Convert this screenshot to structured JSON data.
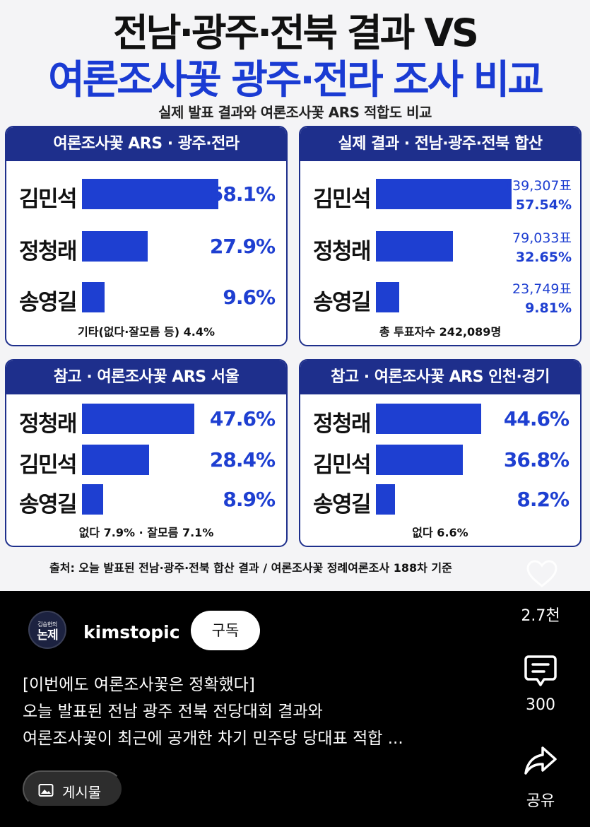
{
  "infographic": {
    "title_line1": "전남·광주·전북 결과 VS",
    "title_line2": "여론조사꽃 광주·전라 조사 비교",
    "subtitle": "실제 발표 결과와 여론조사꽃 ARS 적합도 비교",
    "source": "출처: 오늘 발표된 전남·광주·전북 합산 결과 / 여론조사꽃 정례여론조사 188차 기준",
    "bar_color": "#1e3fd1",
    "header_color": "#1e2f8c",
    "title_accent_color": "#1a3bd3"
  },
  "panels": [
    {
      "title": "여론조사꽃 ARS · 광주·전라",
      "footer": "기타(없다·잘모름 등) 4.4%",
      "rows": [
        {
          "name": "김민석",
          "value": 58.1,
          "label": "58.1%"
        },
        {
          "name": "정청래",
          "value": 27.9,
          "label": "27.9%"
        },
        {
          "name": "송영길",
          "value": 9.6,
          "label": "9.6%"
        }
      ]
    },
    {
      "title": "실제 결과 · 전남·광주·전북 합산",
      "footer": "총 투표자수 242,089명",
      "rows": [
        {
          "name": "김민석",
          "value": 57.54,
          "votes": "139,307표",
          "label": "57.54%"
        },
        {
          "name": "정청래",
          "value": 32.65,
          "votes": "79,033표",
          "label": "32.65%"
        },
        {
          "name": "송영길",
          "value": 9.81,
          "votes": "23,749표",
          "label": "9.81%"
        }
      ]
    },
    {
      "title": "참고 · 여론조사꽃 ARS 서울",
      "footer": "없다 7.9% · 잘모름 7.1%",
      "rows": [
        {
          "name": "정청래",
          "value": 47.6,
          "label": "47.6%"
        },
        {
          "name": "김민석",
          "value": 28.4,
          "label": "28.4%"
        },
        {
          "name": "송영길",
          "value": 8.9,
          "label": "8.9%"
        }
      ]
    },
    {
      "title": "참고 · 여론조사꽃 ARS 인천·경기",
      "footer": "없다 6.6%",
      "rows": [
        {
          "name": "정청래",
          "value": 44.6,
          "label": "44.6%"
        },
        {
          "name": "김민석",
          "value": 36.8,
          "label": "36.8%"
        },
        {
          "name": "송영길",
          "value": 8.2,
          "label": "8.2%"
        }
      ]
    }
  ],
  "post": {
    "avatar_top": "김승현의",
    "avatar_main": "논제",
    "channel_name": "kimstopic",
    "subscribe_label": "구독",
    "description_lines": [
      "[이번에도 여론조사꽃은 정확했다]",
      "오늘 발표된 전남 광주 전북 전당대회 결과와",
      "여론조사꽃이 최근에 공개한 차기 민주당 당대표 적합 ..."
    ],
    "posts_button_label": "게시물",
    "like_count": "2.7천",
    "comment_count": "300",
    "share_label": "공유",
    "icons": {
      "like": "heart-icon",
      "comment": "comment-icon",
      "share": "share-icon",
      "posts": "image-icon"
    }
  }
}
